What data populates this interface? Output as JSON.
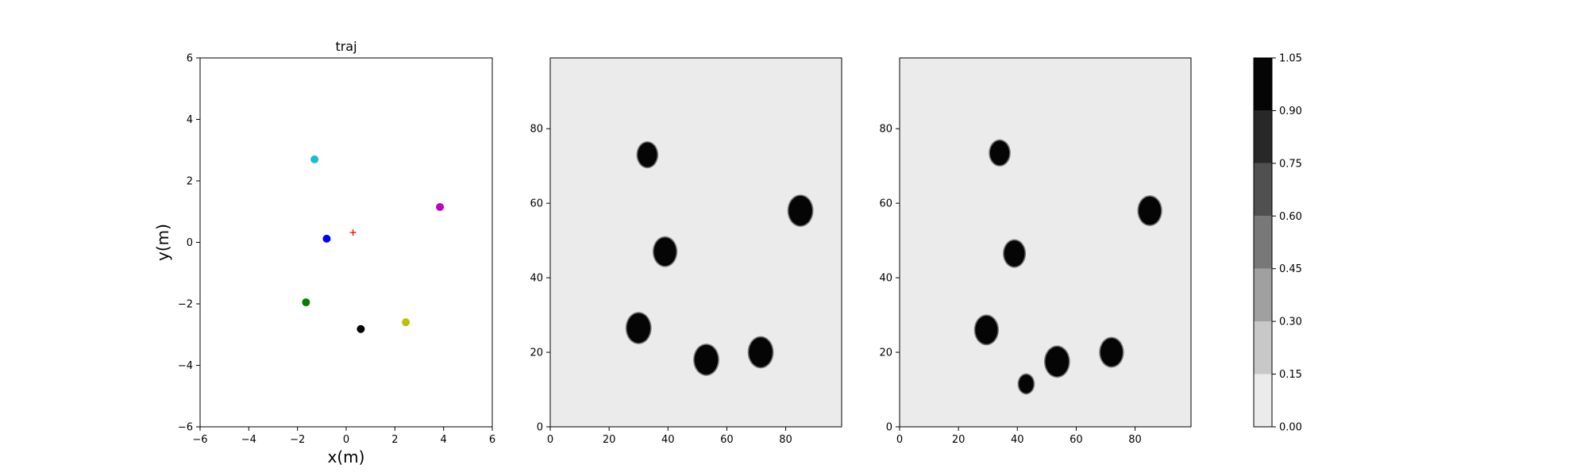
{
  "chart_data": [
    {
      "type": "scatter",
      "title": "traj",
      "xlabel": "x(m)",
      "ylabel": "y(m)",
      "xlim": [
        -6,
        6
      ],
      "ylim": [
        -6,
        6
      ],
      "xticks": [
        -6,
        -4,
        -2,
        0,
        2,
        4,
        6
      ],
      "yticks": [
        -6,
        -4,
        -2,
        0,
        2,
        4,
        6
      ],
      "grid": false,
      "points": [
        {
          "x": -1.3,
          "y": 2.7,
          "color": "#17becf",
          "marker": "dot"
        },
        {
          "x": 3.85,
          "y": 1.15,
          "color": "#c000c0",
          "marker": "dot"
        },
        {
          "x": -0.8,
          "y": 0.12,
          "color": "#0000ff",
          "marker": "dot"
        },
        {
          "x": 0.28,
          "y": 0.32,
          "color": "#ff0000",
          "marker": "plus"
        },
        {
          "x": -1.65,
          "y": -1.95,
          "color": "#008000",
          "marker": "dot"
        },
        {
          "x": 0.6,
          "y": -2.82,
          "color": "#000000",
          "marker": "dot"
        },
        {
          "x": 2.45,
          "y": -2.6,
          "color": "#bfbf00",
          "marker": "dot"
        }
      ]
    },
    {
      "type": "heatmap",
      "title": "",
      "xlim": [
        0,
        99
      ],
      "ylim": [
        0,
        99
      ],
      "xticks": [
        0,
        20,
        40,
        60,
        80
      ],
      "yticks": [
        0,
        20,
        40,
        60,
        80
      ],
      "background_value": 0.05,
      "blobs": [
        {
          "x": 33,
          "y": 73,
          "r": 3.3,
          "value": 1.0
        },
        {
          "x": 85,
          "y": 58,
          "r": 4.0,
          "value": 1.0
        },
        {
          "x": 39,
          "y": 47,
          "r": 3.8,
          "value": 1.0
        },
        {
          "x": 30,
          "y": 26.5,
          "r": 4.0,
          "value": 1.0
        },
        {
          "x": 53,
          "y": 18,
          "r": 4.0,
          "value": 1.0
        },
        {
          "x": 71.5,
          "y": 20,
          "r": 4.0,
          "value": 1.0
        }
      ]
    },
    {
      "type": "heatmap",
      "title": "",
      "xlim": [
        0,
        99
      ],
      "ylim": [
        0,
        99
      ],
      "xticks": [
        0,
        20,
        40,
        60,
        80
      ],
      "yticks": [
        0,
        20,
        40,
        60,
        80
      ],
      "background_value": 0.05,
      "blobs": [
        {
          "x": 34,
          "y": 73.5,
          "r": 3.3,
          "value": 1.0
        },
        {
          "x": 85,
          "y": 58,
          "r": 3.8,
          "value": 1.0
        },
        {
          "x": 39,
          "y": 46.5,
          "r": 3.5,
          "value": 1.0
        },
        {
          "x": 29.5,
          "y": 26,
          "r": 3.8,
          "value": 1.0
        },
        {
          "x": 53.5,
          "y": 17.5,
          "r": 4.0,
          "value": 1.0
        },
        {
          "x": 72,
          "y": 20,
          "r": 3.8,
          "value": 1.0
        },
        {
          "x": 43,
          "y": 11.5,
          "r": 2.5,
          "value": 1.0
        }
      ]
    }
  ],
  "colorbar": {
    "levels": [
      0.0,
      0.15,
      0.3,
      0.45,
      0.6,
      0.75,
      0.9,
      1.05
    ],
    "tick_labels": [
      "0.00",
      "0.15",
      "0.30",
      "0.45",
      "0.60",
      "0.75",
      "0.90",
      "1.05"
    ],
    "colors": [
      "#ebebeb",
      "#c8c8c8",
      "#a0a0a0",
      "#787878",
      "#505050",
      "#282828",
      "#050505"
    ]
  }
}
